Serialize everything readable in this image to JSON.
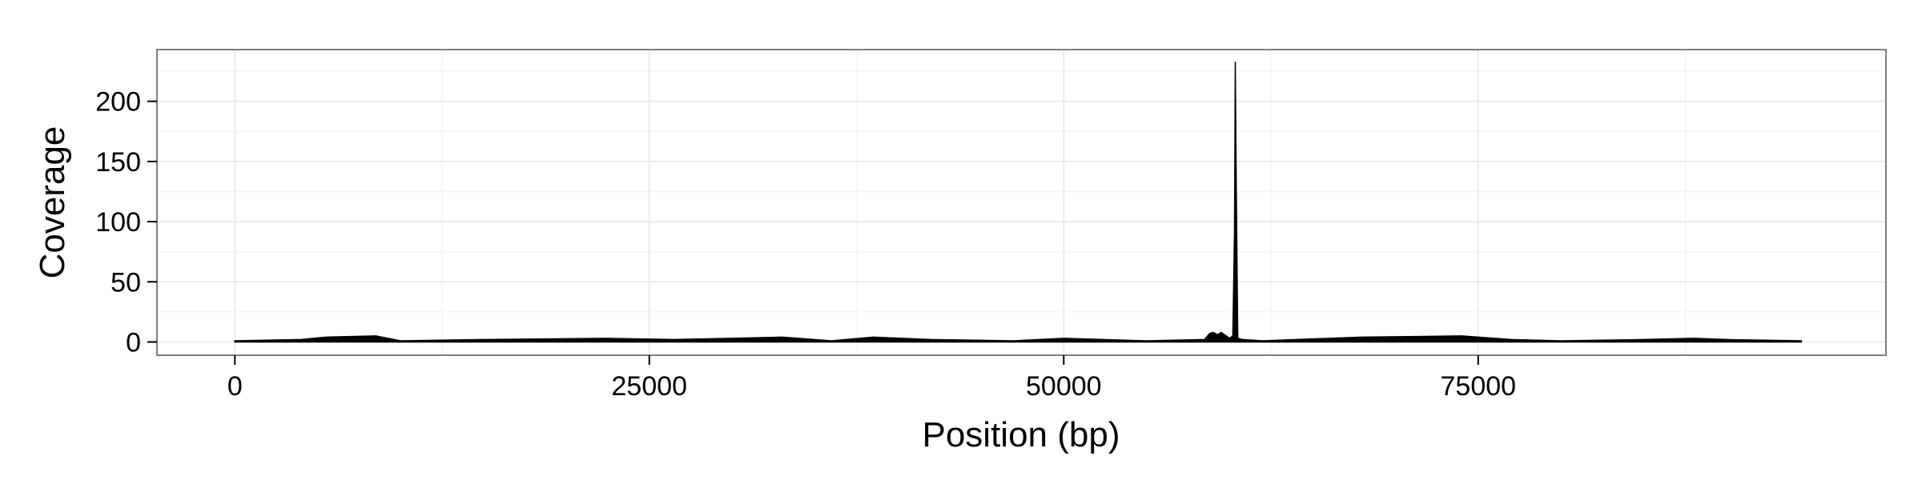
{
  "chart_data": {
    "type": "area",
    "title": "",
    "xlabel": "Position (bp)",
    "ylabel": "Coverage",
    "xlim": [
      -4700,
      99600
    ],
    "ylim": [
      -11,
      243
    ],
    "x_ticks": [
      0,
      25000,
      50000,
      75000
    ],
    "x_tick_labels": [
      "0",
      "25000",
      "50000",
      "75000"
    ],
    "y_ticks": [
      0,
      50,
      100,
      150,
      200
    ],
    "y_tick_labels": [
      "0",
      "50",
      "100",
      "150",
      "200"
    ],
    "grid": true,
    "legend": "none",
    "series": [
      {
        "x": [
          0,
          4000,
          5500,
          8500,
          10000,
          15000,
          22500,
          26500,
          30000,
          33000,
          36000,
          38500,
          42000,
          47000,
          50000,
          55000,
          58500,
          58800,
          59000,
          59300,
          59500,
          59800,
          60000,
          60200,
          60300,
          60350,
          60400,
          60500,
          60800,
          62000,
          66000,
          68000,
          74000,
          77000,
          80000,
          85000,
          88000,
          90000,
          94500
        ],
        "y": [
          1,
          2,
          4,
          5,
          1,
          2,
          3,
          2,
          3,
          4,
          1,
          4,
          2,
          1,
          3,
          1,
          2,
          7,
          8,
          6,
          8,
          5,
          3,
          5,
          90,
          233,
          140,
          3,
          2,
          1,
          3,
          4,
          5,
          2,
          1,
          2,
          3,
          2,
          1
        ]
      }
    ]
  },
  "colors": {
    "panel_background": "#ffffff",
    "panel_border": "#7f7f7f",
    "grid_major": "#ebebeb",
    "grid_minor": "#f5f5f5",
    "data": "#000000",
    "text": "#000000"
  }
}
